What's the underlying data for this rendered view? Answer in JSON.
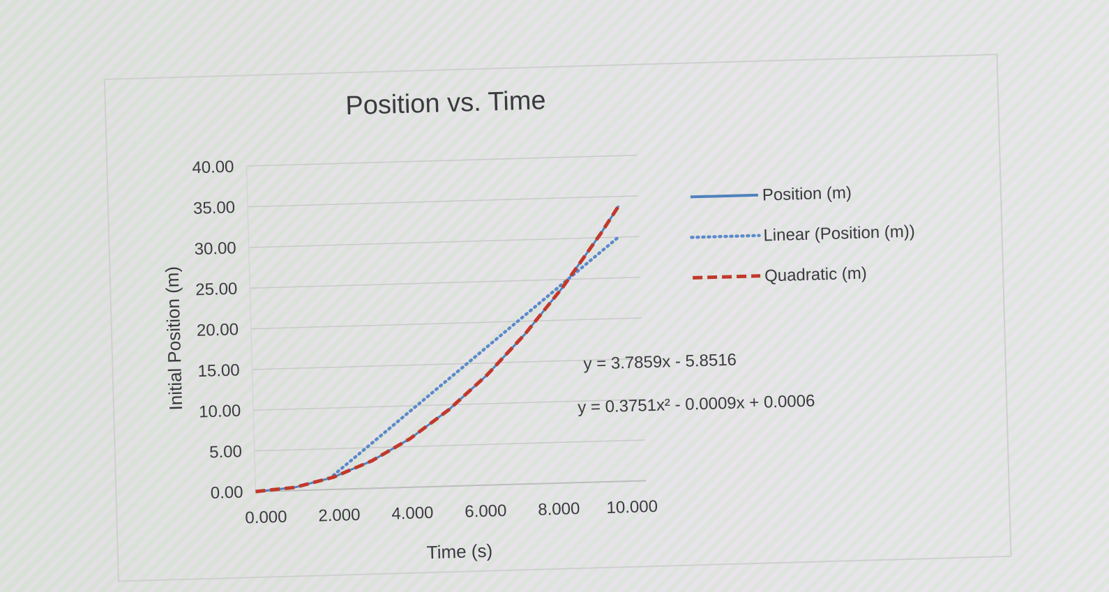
{
  "colors": {
    "position": "#4f81bd",
    "linear": "#5b8ac9",
    "quadratic": "#c0392b",
    "grid": "#c9c9c9",
    "text": "#3a3a3e"
  },
  "chart_data": {
    "type": "scatter",
    "title": "Position vs. Time",
    "xlabel": "Time (s)",
    "ylabel": "Initial Position (m)",
    "xlim": [
      0,
      10
    ],
    "ylim": [
      0,
      40
    ],
    "x_tick_labels": [
      "0.000",
      "2.000",
      "4.000",
      "6.000",
      "8.000",
      "10.000"
    ],
    "y_tick_labels": [
      "0.00",
      "5.00",
      "10.00",
      "15.00",
      "20.00",
      "25.00",
      "30.00",
      "35.00",
      "40.00"
    ],
    "grid": true,
    "legend_position": "right",
    "series": [
      {
        "name": "Position (m)",
        "style": "solid",
        "x": [
          0,
          1,
          2,
          3,
          4,
          5,
          6,
          7,
          8,
          9,
          9.5
        ],
        "y": [
          0,
          0.38,
          1.5,
          3.38,
          6.0,
          9.38,
          13.5,
          18.38,
          24.0,
          30.38,
          33.86
        ]
      },
      {
        "name": "Linear (Position (m))",
        "style": "dotted",
        "trendline": "linear",
        "x": [
          2,
          9.5
        ],
        "y": [
          1.72,
          30.12
        ]
      },
      {
        "name": "Quadratic (m)",
        "style": "dashed",
        "trendline": "polynomial",
        "x": [
          0,
          1,
          2,
          3,
          4,
          5,
          6,
          7,
          8,
          9,
          9.5
        ],
        "y": [
          0,
          0.38,
          1.5,
          3.38,
          6.0,
          9.38,
          13.5,
          18.38,
          24.0,
          30.38,
          33.86
        ]
      }
    ],
    "annotations": [
      "y = 3.7859x - 5.8516",
      "y = 0.3751x² - 0.0009x + 0.0006"
    ]
  }
}
